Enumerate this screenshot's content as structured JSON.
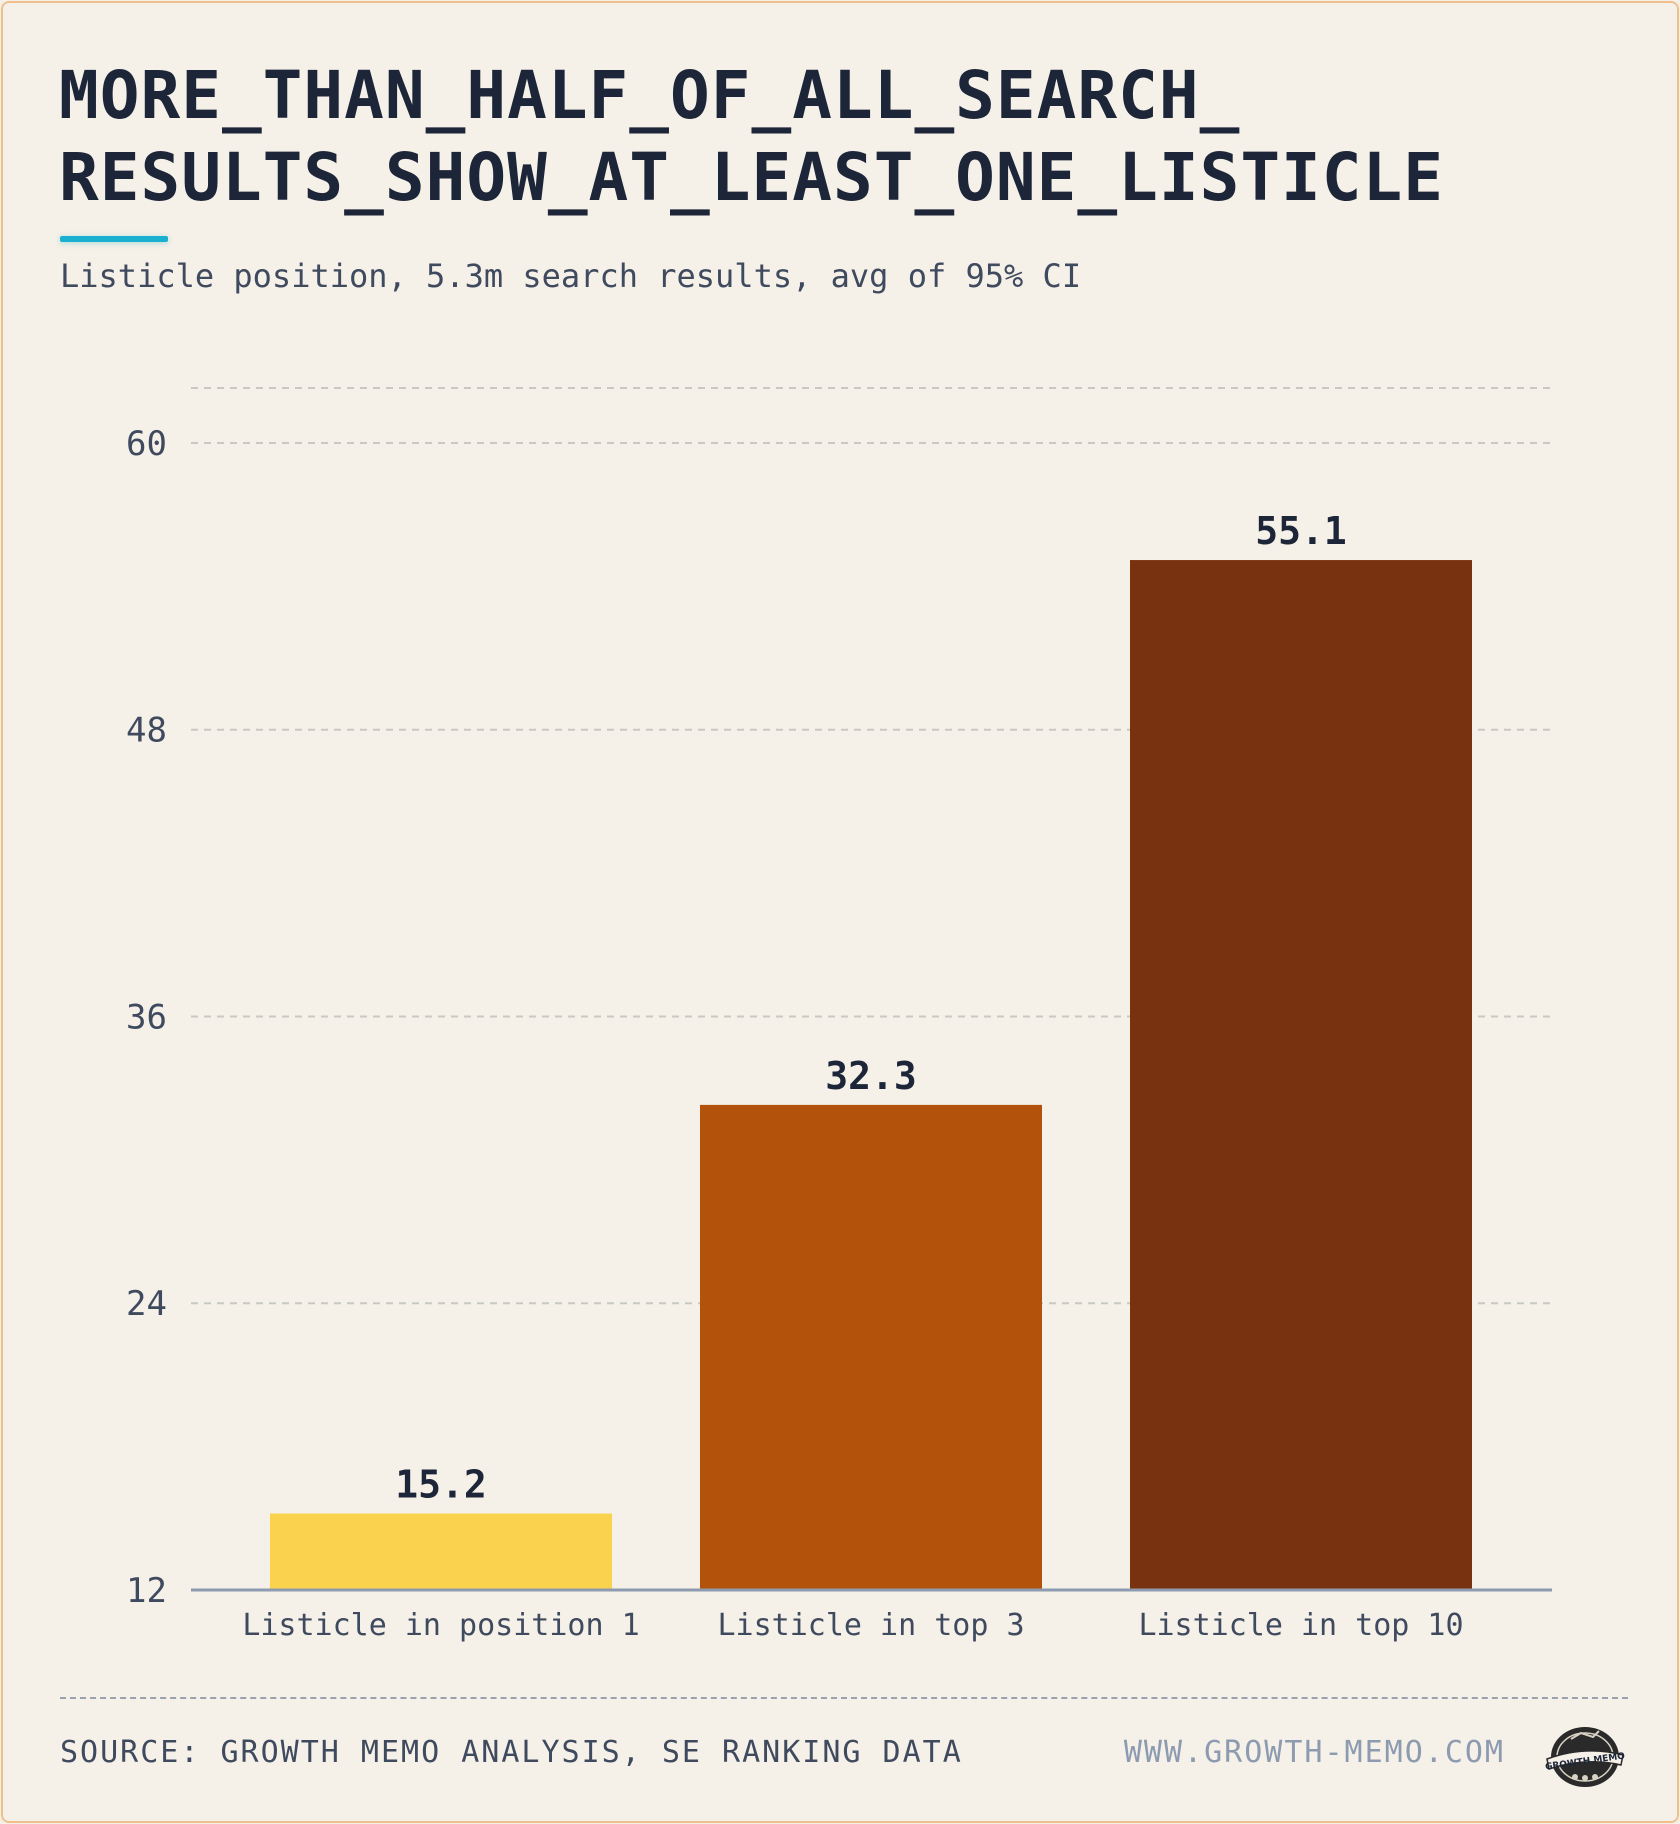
{
  "title": "MORE_THAN_HALF_OF_ALL_SEARCH_ RESULTS_SHOW_AT_LEAST_ONE_LISTICLE",
  "subtitle": "Listicle position, 5.3m search results, avg of 95% CI",
  "footer": {
    "source": "SOURCE: GROWTH MEMO ANALYSIS, SE RANKING DATA",
    "website": "WWW.GROWTH-MEMO.COM",
    "logo_text": "GROWTH MEMO"
  },
  "colors": {
    "accent": "#1ab0d0",
    "border": "#eec08c",
    "background": "#f5f0e8",
    "bar_colors": [
      "#fbd24e",
      "#b3520b",
      "#783210"
    ]
  },
  "chart_data": {
    "type": "bar",
    "categories": [
      "Listicle in position 1",
      "Listicle in top 3",
      "Listicle in top 10"
    ],
    "values": [
      15.2,
      32.3,
      55.1
    ],
    "value_labels": [
      "15.2",
      "32.3",
      "55.1"
    ],
    "yticks": [
      12,
      24,
      36,
      48,
      60
    ],
    "ylim": [
      12,
      62.3
    ],
    "grid": true,
    "legend": "none"
  }
}
